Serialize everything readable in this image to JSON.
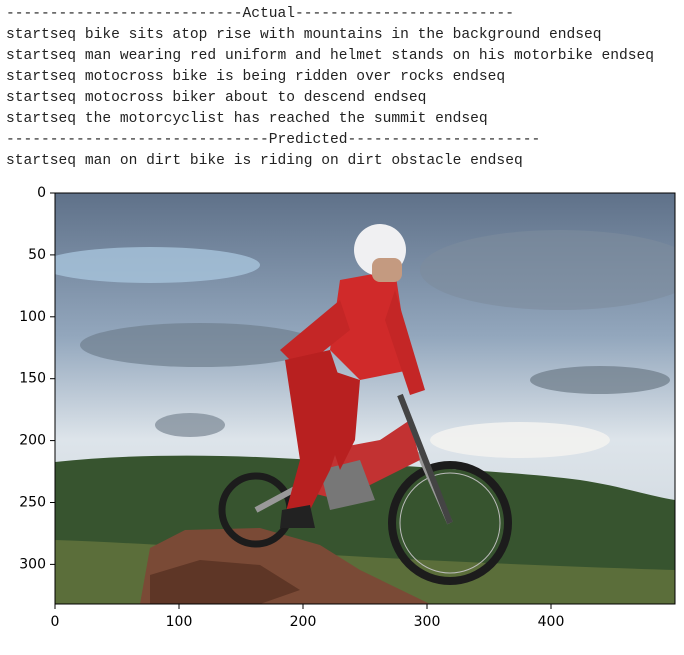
{
  "captions": [
    "---------------------------Actual-------------------------",
    "startseq bike sits atop rise with mountains in the background endseq",
    "startseq man wearing red uniform and helmet stands on his motorbike endseq",
    "startseq motocross bike is being ridden over rocks endseq",
    "startseq motocross biker about to descend endseq",
    "startseq the motorcyclist has reached the summit endseq",
    "------------------------------Predicted----------------------",
    "startseq man on dirt bike is riding on dirt obstacle endseq"
  ],
  "chart_data": {
    "type": "image",
    "xlim": [
      0,
      500
    ],
    "ylim": [
      332,
      0
    ],
    "xticks": [
      0,
      100,
      200,
      300,
      400
    ],
    "yticks": [
      0,
      50,
      100,
      150,
      200,
      250,
      300
    ]
  }
}
